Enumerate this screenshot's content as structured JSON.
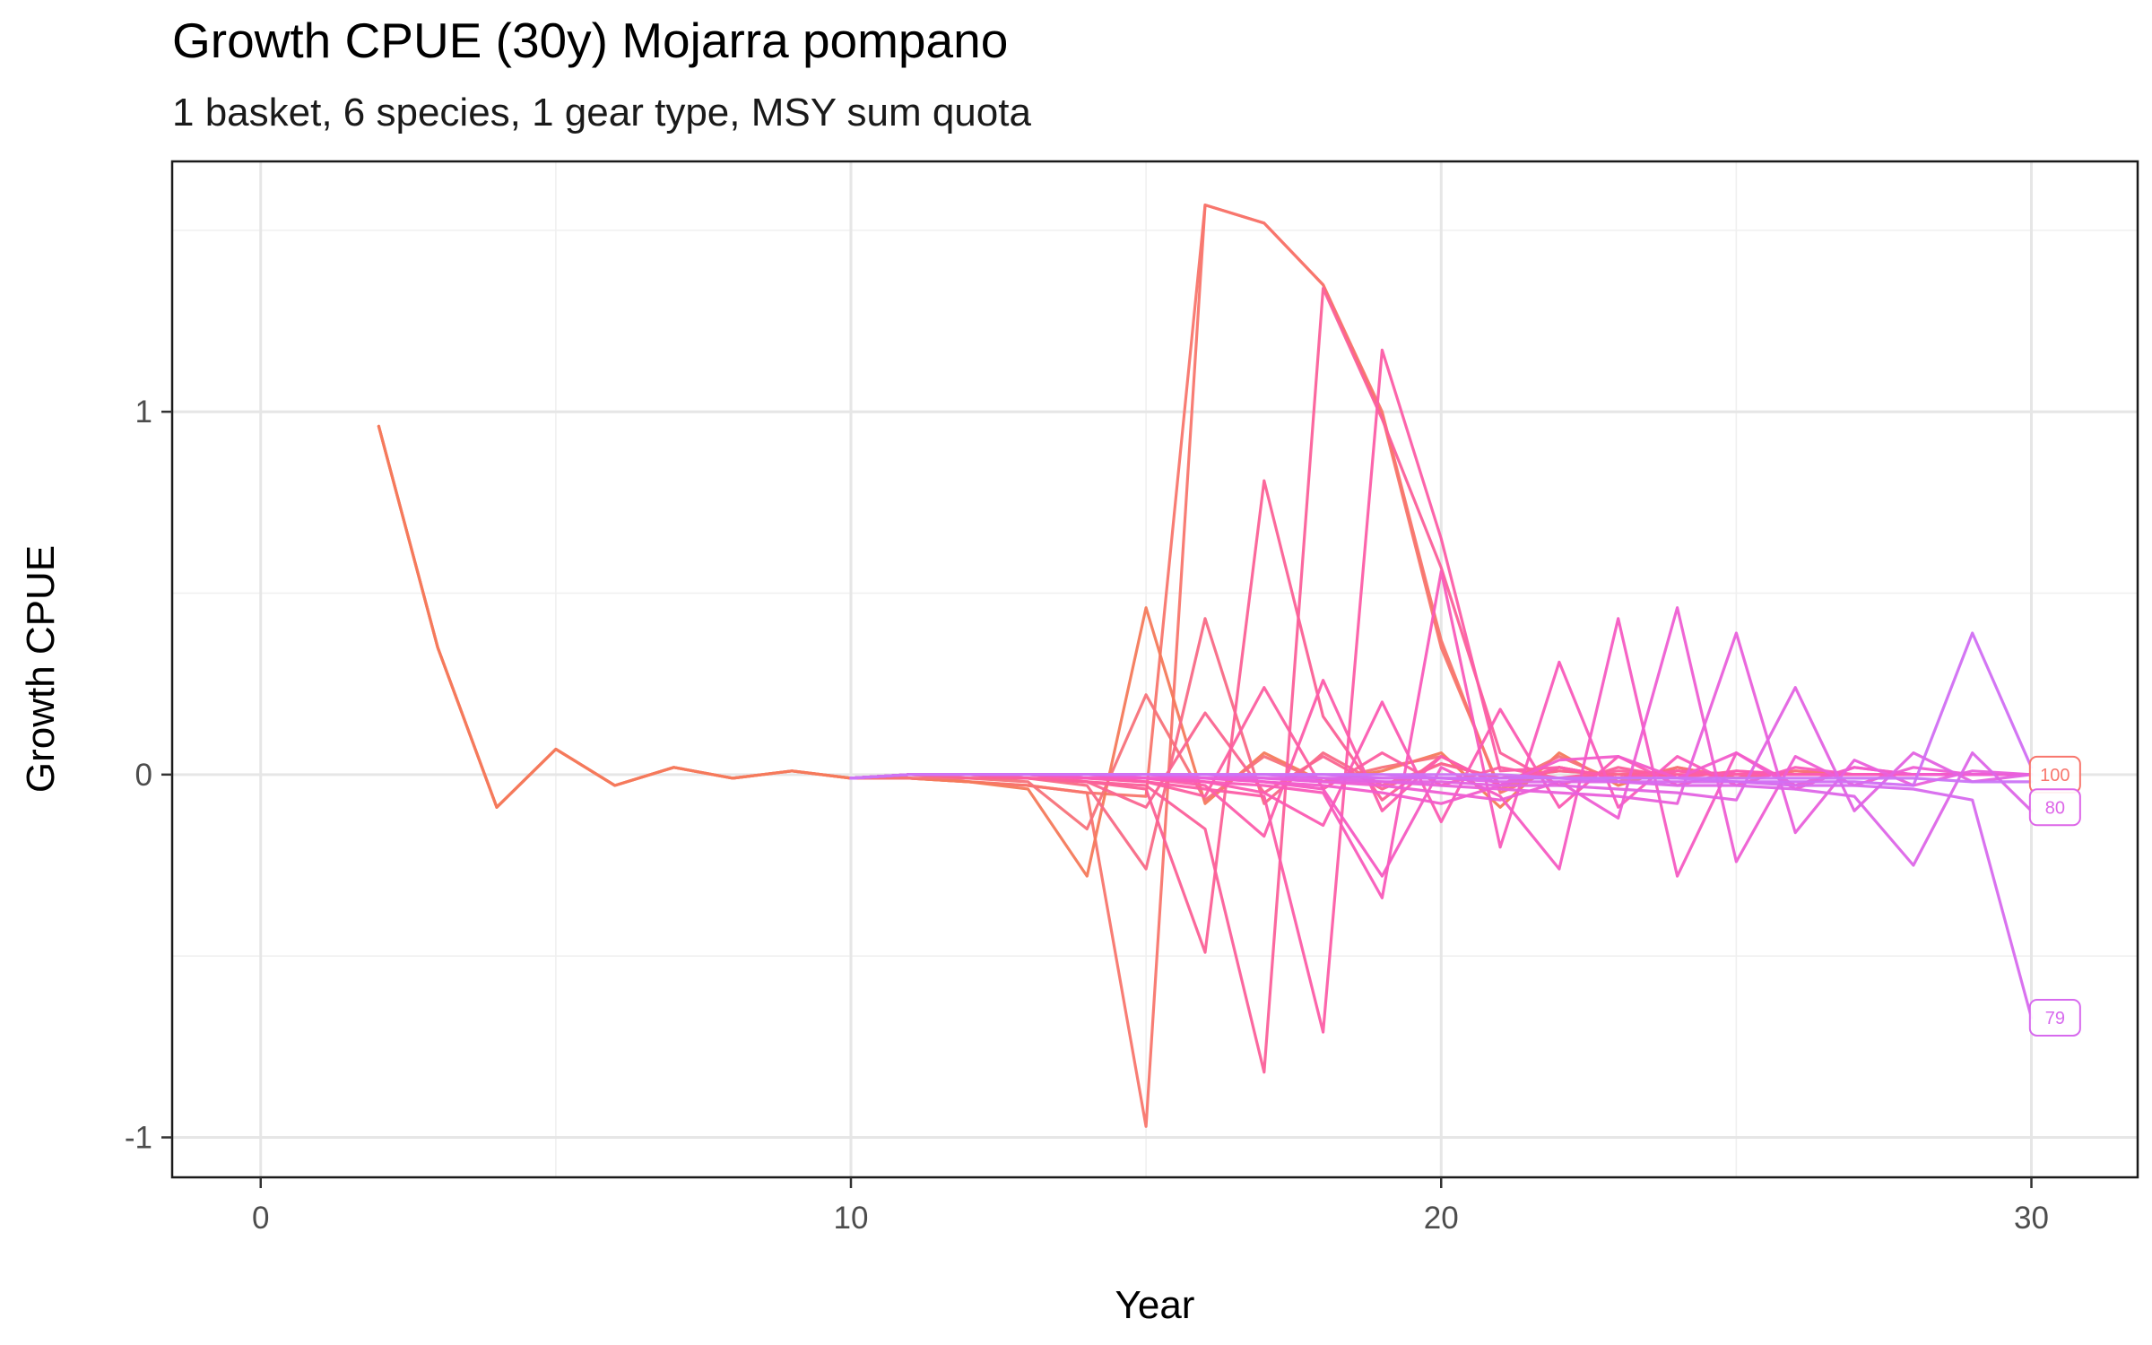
{
  "chart_data": {
    "type": "line",
    "title": "Growth CPUE (30y) Mojarra pompano",
    "subtitle": "1 basket, 6 species, 1 gear type, MSY sum quota",
    "xlabel": "Year",
    "ylabel": "Growth CPUE",
    "xlim": [
      -1.5,
      31.8
    ],
    "ylim": [
      -1.11,
      1.69
    ],
    "x_ticks": [
      0,
      10,
      20,
      30
    ],
    "x_tick_labels": [
      "0",
      "10",
      "20",
      "30"
    ],
    "y_ticks": [
      -1,
      0,
      1
    ],
    "y_tick_labels": [
      "-1",
      "0",
      "1"
    ],
    "grid": true,
    "legend": "none",
    "series": [
      {
        "label": "",
        "color": "#f8766d",
        "x": [
          2,
          3,
          4,
          5,
          6,
          7,
          8,
          9,
          10,
          11,
          12,
          13,
          14,
          15,
          16,
          17,
          18,
          19,
          20,
          21,
          22,
          23,
          24,
          25,
          26,
          27,
          28,
          29,
          30
        ],
        "y": [
          0.96,
          0.35,
          -0.09,
          0.07,
          -0.03,
          0.02,
          -0.01,
          0.01,
          -0.01,
          -0.01,
          -0.02,
          -0.03,
          -0.05,
          -0.06,
          1.57,
          1.52,
          1.35,
          1.0,
          0.37,
          -0.05,
          0.02,
          -0.01,
          0.01,
          0,
          0,
          0,
          0,
          0,
          0
        ]
      },
      {
        "label": "",
        "color": "#f8766d",
        "x": [
          2,
          3,
          4,
          5,
          6,
          7,
          8,
          9,
          10,
          11,
          12,
          13,
          14,
          15,
          16,
          17,
          18,
          19,
          20,
          21,
          22,
          23,
          24,
          25,
          26,
          27,
          28,
          29,
          30
        ],
        "y": [
          0.96,
          0.35,
          -0.09,
          0.07,
          -0.03,
          0.02,
          -0.01,
          0.01,
          -0.01,
          -0.01,
          -0.02,
          -0.03,
          -0.05,
          -0.97,
          1.57,
          1.52,
          1.35,
          0.99,
          0.35,
          -0.04,
          0.02,
          -0.01,
          0.01,
          0,
          0,
          0,
          0,
          0,
          0
        ]
      },
      {
        "label": "",
        "color": "#f47a5b",
        "x": [
          2,
          3,
          4,
          5,
          6,
          7,
          8,
          9,
          10,
          11,
          12,
          13,
          14,
          15,
          16,
          17,
          18,
          19,
          20,
          21,
          22,
          23,
          24,
          25,
          26,
          27,
          28,
          29,
          30
        ],
        "y": [
          0.96,
          0.35,
          -0.09,
          0.07,
          -0.03,
          0.02,
          -0.01,
          0.01,
          -0.01,
          -0.01,
          -0.02,
          -0.04,
          -0.28,
          0.46,
          -0.08,
          0.06,
          -0.02,
          0.01,
          0.06,
          -0.09,
          0.06,
          -0.03,
          0.02,
          -0.01,
          0.01,
          0,
          0,
          0,
          0
        ]
      },
      {
        "label": "",
        "color": "#f7727a",
        "x": [
          10,
          11,
          12,
          13,
          14,
          15,
          16,
          17,
          18,
          19,
          20,
          21,
          22,
          23,
          24,
          25,
          26,
          27,
          28,
          29,
          30
        ],
        "y": [
          -0.01,
          -0.01,
          -0.01,
          -0.02,
          -0.15,
          0.22,
          -0.07,
          0.05,
          -0.02,
          0.02,
          0.05,
          -0.03,
          0.05,
          -0.02,
          0.02,
          -0.01,
          0.01,
          0,
          0,
          0,
          0
        ]
      },
      {
        "label": "",
        "color": "#f86a86",
        "x": [
          10,
          11,
          12,
          13,
          14,
          15,
          16,
          17,
          18,
          19,
          20,
          21,
          22,
          23,
          24,
          25,
          26,
          27,
          28,
          29,
          30
        ],
        "y": [
          -0.01,
          0,
          -0.01,
          -0.01,
          -0.03,
          -0.26,
          0.43,
          -0.08,
          0.06,
          -0.03,
          0.03,
          -0.01,
          0.01,
          0,
          0.01,
          0,
          0,
          0,
          0,
          0,
          0
        ]
      },
      {
        "label": "",
        "color": "#fa6590",
        "x": [
          10,
          11,
          12,
          13,
          14,
          15,
          16,
          17,
          18,
          19,
          20,
          21,
          22,
          23,
          24,
          25,
          26,
          27,
          28,
          29,
          30
        ],
        "y": [
          -0.01,
          0,
          -0.01,
          -0.01,
          -0.02,
          -0.09,
          0.17,
          -0.05,
          0.05,
          -0.04,
          0.03,
          -0.01,
          0.01,
          0,
          0,
          0,
          0,
          0,
          0,
          0,
          0
        ]
      },
      {
        "label": "",
        "color": "#fb6196",
        "x": [
          10,
          11,
          12,
          13,
          14,
          15,
          16,
          17,
          18,
          19,
          20,
          21,
          22,
          23,
          24,
          25,
          26,
          27,
          28,
          29,
          30
        ],
        "y": [
          -0.01,
          0,
          0,
          -0.01,
          -0.02,
          -0.04,
          -0.49,
          0.81,
          0.16,
          -0.07,
          0.05,
          -0.03,
          0.02,
          -0.01,
          0.01,
          0,
          0,
          0,
          0,
          0,
          0
        ]
      },
      {
        "label": "",
        "color": "#fb609a",
        "x": [
          10,
          11,
          12,
          13,
          14,
          15,
          16,
          17,
          18,
          19,
          20,
          21,
          22,
          23,
          24,
          25,
          26,
          27,
          28,
          29,
          30
        ],
        "y": [
          -0.01,
          0,
          0,
          -0.01,
          -0.02,
          -0.03,
          -0.15,
          -0.82,
          1.34,
          0.98,
          0.57,
          0.06,
          -0.03,
          0.02,
          -0.01,
          0.01,
          0,
          0,
          0,
          0,
          0
        ]
      },
      {
        "label": "",
        "color": "#fc5fa0",
        "x": [
          10,
          11,
          12,
          13,
          14,
          15,
          16,
          17,
          18,
          19,
          20,
          21,
          22,
          23,
          24,
          25,
          26,
          27,
          28,
          29,
          30
        ],
        "y": [
          -0.01,
          0,
          0,
          -0.01,
          -0.01,
          -0.02,
          -0.06,
          0.24,
          -0.04,
          0.06,
          -0.03,
          0.02,
          -0.01,
          0.01,
          0,
          0,
          0,
          0,
          0,
          0,
          0
        ]
      },
      {
        "label": "",
        "color": "#fc5da6",
        "x": [
          10,
          11,
          12,
          13,
          14,
          15,
          16,
          17,
          18,
          19,
          20,
          21,
          22,
          23,
          24,
          25,
          26,
          27,
          28,
          29,
          30
        ],
        "y": [
          -0.01,
          0,
          0,
          0,
          -0.01,
          -0.02,
          -0.04,
          -0.06,
          -0.71,
          1.17,
          0.65,
          0.01,
          0.02,
          -0.01,
          0.01,
          0,
          0,
          0,
          0,
          0,
          0
        ]
      },
      {
        "label": "",
        "color": "#fc5dab",
        "x": [
          10,
          11,
          12,
          13,
          14,
          15,
          16,
          17,
          18,
          19,
          20,
          21,
          22,
          23,
          24,
          25,
          26,
          27,
          28,
          29,
          30
        ],
        "y": [
          -0.01,
          0,
          0,
          0,
          -0.01,
          -0.01,
          -0.03,
          -0.17,
          0.26,
          -0.1,
          0.05,
          -0.03,
          0.02,
          -0.01,
          0.01,
          0,
          0,
          0,
          0,
          0,
          0
        ]
      },
      {
        "label": "",
        "color": "#fb5bb2",
        "x": [
          10,
          11,
          12,
          13,
          14,
          15,
          16,
          17,
          18,
          19,
          20,
          21,
          22,
          23,
          24,
          25,
          26,
          27,
          28,
          29,
          30
        ],
        "y": [
          -0.01,
          0,
          0,
          0,
          -0.01,
          -0.01,
          -0.02,
          -0.05,
          -0.14,
          0.2,
          -0.13,
          0.18,
          -0.09,
          0.05,
          -0.03,
          0.01,
          0,
          0,
          0,
          0,
          0
        ]
      },
      {
        "label": "",
        "color": "#f95bba",
        "x": [
          10,
          11,
          12,
          13,
          14,
          15,
          16,
          17,
          18,
          19,
          20,
          21,
          22,
          23,
          24,
          25,
          26,
          27,
          28,
          29,
          30
        ],
        "y": [
          -0.01,
          0,
          0,
          0,
          -0.01,
          -0.01,
          -0.02,
          -0.03,
          -0.05,
          -0.34,
          0.56,
          -0.2,
          0.31,
          -0.09,
          0.05,
          -0.03,
          0.02,
          0,
          0,
          0,
          0
        ]
      },
      {
        "label": "",
        "color": "#f65bc2",
        "x": [
          10,
          11,
          12,
          13,
          14,
          15,
          16,
          17,
          18,
          19,
          20,
          21,
          22,
          23,
          24,
          25,
          26,
          27,
          28,
          29,
          30
        ],
        "y": [
          -0.01,
          0,
          0,
          0,
          0,
          -0.01,
          -0.01,
          -0.02,
          -0.04,
          -0.28,
          0.02,
          -0.06,
          -0.26,
          0.43,
          -0.28,
          0.06,
          -0.03,
          0.02,
          0,
          0,
          0
        ]
      },
      {
        "label": "",
        "color": "#f25ccb",
        "x": [
          10,
          11,
          12,
          13,
          14,
          15,
          16,
          17,
          18,
          19,
          20,
          21,
          22,
          23,
          24,
          25,
          26,
          27,
          28,
          29,
          30
        ],
        "y": [
          -0.01,
          0,
          0,
          0,
          0,
          -0.01,
          -0.01,
          -0.02,
          -0.03,
          -0.05,
          -0.08,
          -0.03,
          0.04,
          0.05,
          -0.01,
          0.06,
          -0.04,
          0.02,
          0,
          0,
          0
        ]
      },
      {
        "label": "",
        "color": "#ee5ed3",
        "x": [
          10,
          11,
          12,
          13,
          14,
          15,
          16,
          17,
          18,
          19,
          20,
          21,
          22,
          23,
          24,
          25,
          26,
          27,
          28,
          29,
          30
        ],
        "y": [
          -0.01,
          0,
          0,
          0,
          0,
          0,
          -0.01,
          -0.01,
          -0.02,
          -0.03,
          -0.05,
          -0.07,
          -0.02,
          -0.12,
          0.46,
          -0.24,
          0.05,
          -0.03,
          0.02,
          0,
          0
        ]
      },
      {
        "label": "",
        "color": "#e960db",
        "x": [
          10,
          11,
          12,
          13,
          14,
          15,
          16,
          17,
          18,
          19,
          20,
          21,
          22,
          23,
          24,
          25,
          26,
          27,
          28,
          29,
          30
        ],
        "y": [
          -0.01,
          0,
          0,
          0,
          0,
          0,
          -0.01,
          -0.01,
          -0.02,
          -0.02,
          -0.03,
          -0.04,
          -0.05,
          -0.06,
          -0.08,
          0.39,
          -0.16,
          0.04,
          -0.03,
          0.01,
          0
        ]
      },
      {
        "label": "",
        "color": "#e363e2",
        "x": [
          10,
          11,
          12,
          13,
          14,
          15,
          16,
          17,
          18,
          19,
          20,
          21,
          22,
          23,
          24,
          25,
          26,
          27,
          28,
          29,
          30
        ],
        "y": [
          -0.01,
          0,
          0,
          0,
          0,
          0,
          0,
          -0.01,
          -0.01,
          -0.02,
          -0.02,
          -0.03,
          -0.03,
          -0.04,
          -0.05,
          -0.07,
          0.24,
          -0.1,
          0.06,
          -0.02,
          0
        ]
      },
      {
        "label": "",
        "color": "#dd66e8",
        "x": [
          10,
          11,
          12,
          13,
          14,
          15,
          16,
          17,
          18,
          19,
          20,
          21,
          22,
          23,
          24,
          25,
          26,
          27,
          28,
          29,
          30
        ],
        "y": [
          -0.01,
          0,
          0,
          0,
          0,
          0,
          0,
          0,
          -0.01,
          -0.01,
          -0.01,
          -0.02,
          -0.02,
          -0.02,
          -0.03,
          -0.03,
          -0.04,
          -0.06,
          -0.25,
          0.06,
          -0.1
        ]
      },
      {
        "label": "",
        "color": "#d76aee",
        "x": [
          10,
          11,
          12,
          13,
          14,
          15,
          16,
          17,
          18,
          19,
          20,
          21,
          22,
          23,
          24,
          25,
          26,
          27,
          28,
          29,
          30
        ],
        "y": [
          -0.01,
          0,
          0,
          0,
          0,
          0,
          0,
          0,
          0,
          -0.01,
          -0.01,
          -0.01,
          -0.01,
          -0.02,
          -0.02,
          -0.02,
          -0.03,
          -0.03,
          -0.04,
          -0.07,
          -0.67
        ]
      },
      {
        "label": "",
        "color": "#d16ff3",
        "x": [
          10,
          11,
          12,
          13,
          14,
          15,
          16,
          17,
          18,
          19,
          20,
          21,
          22,
          23,
          24,
          25,
          26,
          27,
          28,
          29,
          30
        ],
        "y": [
          -0.01,
          0,
          0,
          0,
          0,
          0,
          0,
          0,
          0,
          0,
          -0.01,
          -0.01,
          -0.01,
          -0.01,
          -0.01,
          -0.02,
          -0.02,
          -0.02,
          -0.03,
          0.39,
          0.02
        ]
      },
      {
        "label": "",
        "color": "#cb74f6",
        "x": [
          10,
          11,
          12,
          13,
          14,
          15,
          16,
          17,
          18,
          19,
          20,
          21,
          22,
          23,
          24,
          25,
          26,
          27,
          28,
          29,
          30
        ],
        "y": [
          -0.01,
          0,
          0,
          0,
          0,
          0,
          0,
          0,
          0,
          0,
          0,
          0,
          -0.01,
          -0.01,
          -0.01,
          -0.01,
          -0.01,
          -0.01,
          -0.01,
          -0.02,
          -0.02
        ]
      }
    ],
    "end_labels": [
      {
        "text": "100",
        "x": 30.4,
        "y": 0.0,
        "color": "#f8766d"
      },
      {
        "text": "80",
        "x": 30.4,
        "y": -0.09,
        "color": "#dd66e8"
      },
      {
        "text": "79",
        "x": 30.4,
        "y": -0.67,
        "color": "#d76aee"
      }
    ]
  }
}
